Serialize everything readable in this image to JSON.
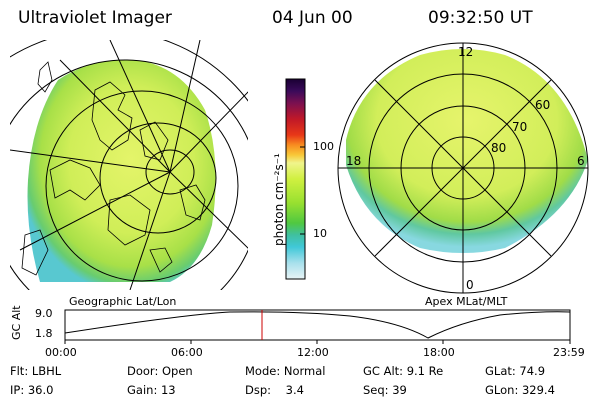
{
  "header": {
    "title": "Ultraviolet Imager",
    "date": "04 Jun 00",
    "time": "09:32:50 UT"
  },
  "colorbar": {
    "label": "photon cm⁻²s⁻¹",
    "ticks": [
      "100",
      "10"
    ],
    "colors": [
      "#1a0033",
      "#3a0a5a",
      "#5a1a6a",
      "#7a1050",
      "#b01030",
      "#d82020",
      "#f05018",
      "#f89020",
      "#f8c030",
      "#e8f070",
      "#c8f030",
      "#98e830",
      "#60d030",
      "#40c0a0",
      "#40c8d8",
      "#a0e0e8",
      "#d8f0f4"
    ]
  },
  "left_panel": {
    "caption": "Geographic Lat/Lon",
    "image_colors": {
      "main": "#d6f060",
      "edge": "#7cd05a",
      "rim": "#55c8d0"
    }
  },
  "right_panel": {
    "caption": "Apex MLat/MLT",
    "mlt_labels": [
      "12",
      "18",
      "6",
      "0"
    ],
    "mlat_labels": [
      "60",
      "70",
      "80"
    ],
    "image_colors": {
      "main": "#d6f060",
      "edge": "#7cd05a",
      "rim": "#55c8d0"
    }
  },
  "altitude_plot": {
    "ylabel": "GC Alt",
    "yticks": [
      "9.0",
      "1.8"
    ],
    "xticks": [
      "00:00",
      "06:00",
      "12:00",
      "18:00",
      "23:59"
    ],
    "marker_color": "#cc0000"
  },
  "info": {
    "row1": [
      "Flt: LBHL",
      "Door: Open",
      "Mode: Normal",
      "GC Alt: 9.1 Re",
      "GLat:  74.9"
    ],
    "row2": [
      "IP: 36.0",
      "Gain: 13",
      "Dsp:    3.4",
      "Seq: 39",
      "GLon: 329.4"
    ]
  }
}
